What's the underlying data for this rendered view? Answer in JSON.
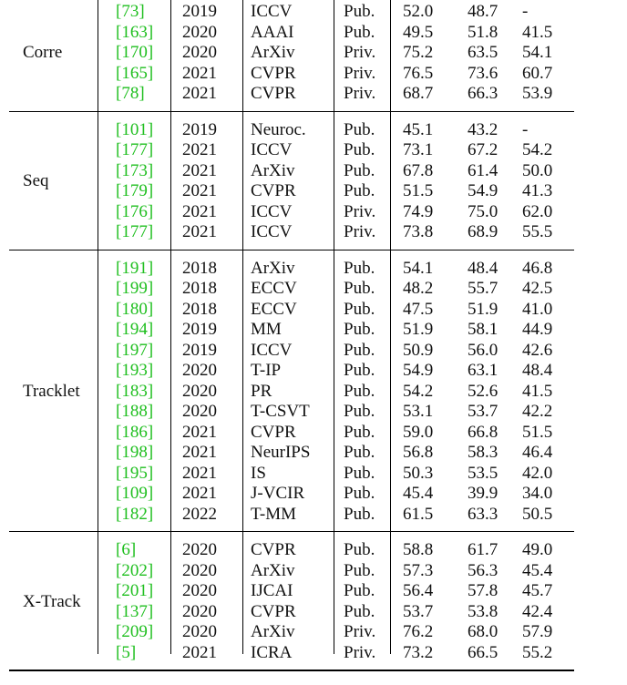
{
  "table": {
    "groups": [
      {
        "name": "Corre",
        "rows": [
          [
            "[73]",
            "2019",
            "ICCV",
            "Pub.",
            "52.0",
            "48.7",
            "-"
          ],
          [
            "[163]",
            "2020",
            "AAAI",
            "Pub.",
            "49.5",
            "51.8",
            "41.5"
          ],
          [
            "[170]",
            "2020",
            "ArXiv",
            "Priv.",
            "75.2",
            "63.5",
            "54.1"
          ],
          [
            "[165]",
            "2021",
            "CVPR",
            "Priv.",
            "76.5",
            "73.6",
            "60.7"
          ],
          [
            "[78]",
            "2021",
            "CVPR",
            "Priv.",
            "68.7",
            "66.3",
            "53.9"
          ]
        ]
      },
      {
        "name": "Seq",
        "rows": [
          [
            "[101]",
            "2019",
            "Neuroc.",
            "Pub.",
            "45.1",
            "43.2",
            "-"
          ],
          [
            "[177]",
            "2021",
            "ICCV",
            "Pub.",
            "73.1",
            "67.2",
            "54.2"
          ],
          [
            "[173]",
            "2021",
            "ArXiv",
            "Pub.",
            "67.8",
            "61.4",
            "50.0"
          ],
          [
            "[179]",
            "2021",
            "CVPR",
            "Pub.",
            "51.5",
            "54.9",
            "41.3"
          ],
          [
            "[176]",
            "2021",
            "ICCV",
            "Priv.",
            "74.9",
            "75.0",
            "62.0"
          ],
          [
            "[177]",
            "2021",
            "ICCV",
            "Priv.",
            "73.8",
            "68.9",
            "55.5"
          ]
        ]
      },
      {
        "name": "Tracklet",
        "rows": [
          [
            "[191]",
            "2018",
            "ArXiv",
            "Pub.",
            "54.1",
            "48.4",
            "46.8"
          ],
          [
            "[199]",
            "2018",
            "ECCV",
            "Pub.",
            "48.2",
            "55.7",
            "42.5"
          ],
          [
            "[180]",
            "2018",
            "ECCV",
            "Pub.",
            "47.5",
            "51.9",
            "41.0"
          ],
          [
            "[194]",
            "2019",
            "MM",
            "Pub.",
            "51.9",
            "58.1",
            "44.9"
          ],
          [
            "[197]",
            "2019",
            "ICCV",
            "Pub.",
            "50.9",
            "56.0",
            "42.6"
          ],
          [
            "[193]",
            "2020",
            "T-IP",
            "Pub.",
            "54.9",
            "63.1",
            "48.4"
          ],
          [
            "[183]",
            "2020",
            "PR",
            "Pub.",
            "54.2",
            "52.6",
            "41.5"
          ],
          [
            "[188]",
            "2020",
            "T-CSVT",
            "Pub.",
            "53.1",
            "53.7",
            "42.2"
          ],
          [
            "[186]",
            "2021",
            "CVPR",
            "Pub.",
            "59.0",
            "66.8",
            "51.5"
          ],
          [
            "[198]",
            "2021",
            "NeurIPS",
            "Pub.",
            "56.8",
            "58.3",
            "46.4"
          ],
          [
            "[195]",
            "2021",
            "IS",
            "Pub.",
            "50.3",
            "53.5",
            "42.0"
          ],
          [
            "[109]",
            "2021",
            "J-VCIR",
            "Pub.",
            "45.4",
            "39.9",
            "34.0"
          ],
          [
            "[182]",
            "2022",
            "T-MM",
            "Pub.",
            "61.5",
            "63.3",
            "50.5"
          ]
        ]
      },
      {
        "name": "X-Track",
        "rows": [
          [
            "[6]",
            "2020",
            "CVPR",
            "Pub.",
            "58.8",
            "61.7",
            "49.0"
          ],
          [
            "[202]",
            "2020",
            "ArXiv",
            "Pub.",
            "57.3",
            "56.3",
            "45.4"
          ],
          [
            "[201]",
            "2020",
            "IJCAI",
            "Pub.",
            "56.4",
            "57.8",
            "45.7"
          ],
          [
            "[137]",
            "2020",
            "CVPR",
            "Pub.",
            "53.7",
            "53.8",
            "42.4"
          ],
          [
            "[209]",
            "2020",
            "ArXiv",
            "Priv.",
            "76.2",
            "68.0",
            "57.9"
          ],
          [
            "[5]",
            "2021",
            "ICRA",
            "Priv.",
            "73.2",
            "66.5",
            "55.2"
          ]
        ]
      }
    ]
  }
}
